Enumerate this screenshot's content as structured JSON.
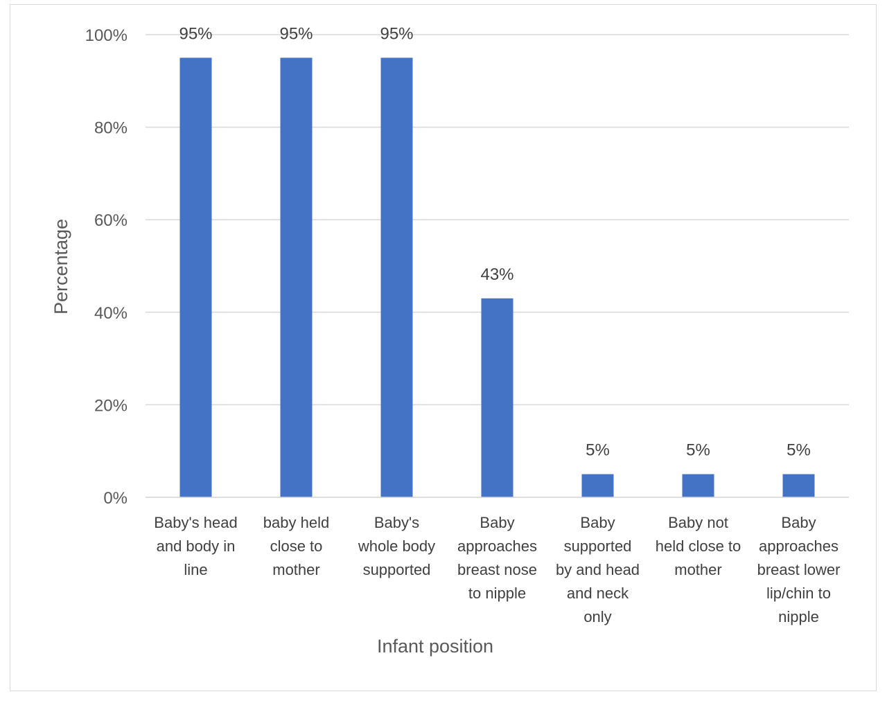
{
  "chart_data": {
    "type": "bar",
    "xlabel": "Infant position",
    "ylabel": "Percentage",
    "ylim": [
      0,
      100
    ],
    "yticks": [
      0,
      20,
      40,
      60,
      80,
      100
    ],
    "ytick_suffix": "%",
    "grid": true,
    "bar_color": "#4472C4",
    "categories": [
      [
        "Baby's head",
        "and body in",
        "line"
      ],
      [
        "baby held",
        "close to",
        "mother"
      ],
      [
        "Baby's",
        "whole body",
        "supported"
      ],
      [
        "Baby",
        "approaches",
        "breast nose",
        "to nipple"
      ],
      [
        "Baby",
        "supported",
        "by and head",
        "and neck",
        "only"
      ],
      [
        "Baby not",
        "held close to",
        "mother"
      ],
      [
        "Baby",
        "approaches",
        "breast lower",
        "lip/chin to",
        "nipple"
      ]
    ],
    "values": [
      95,
      95,
      95,
      43,
      5,
      5,
      5
    ],
    "data_labels": [
      "95%",
      "95%",
      "95%",
      "43%",
      "5%",
      "5%",
      "5%"
    ]
  }
}
